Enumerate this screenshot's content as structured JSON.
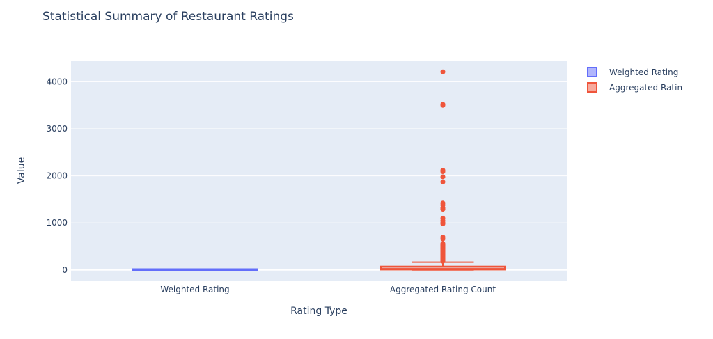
{
  "chart_data": {
    "type": "box",
    "title": "Statistical Summary of Restaurant Ratings",
    "xlabel": "Rating Type",
    "ylabel": "Value",
    "categories": [
      "Weighted Rating",
      "Aggregated Rating Count"
    ],
    "ylim": [
      -240,
      4450
    ],
    "yticks": [
      0,
      1000,
      2000,
      3000,
      4000
    ],
    "grid": true,
    "legend_position": "right",
    "series": [
      {
        "name": "Weighted Rating",
        "legend_label": "Weighted Rating",
        "category": "Weighted Rating",
        "color": "#636efa",
        "box": {
          "lower_fence": 0,
          "q1": 1,
          "median": 3,
          "q3": 4,
          "upper_fence": 5
        },
        "outliers": []
      },
      {
        "name": "Aggregated Rating Count",
        "legend_label": "Aggregated Ratin",
        "category": "Aggregated Rating Count",
        "color": "#ef553b",
        "box": {
          "lower_fence": 0,
          "q1": 5,
          "median": 25,
          "q3": 75,
          "upper_fence": 165
        },
        "outliers": [
          4210,
          3520,
          3500,
          2120,
          2090,
          1980,
          1870,
          1420,
          1380,
          1320,
          1290,
          1100,
          1050,
          1010,
          980,
          700,
          660,
          560,
          540,
          520,
          500,
          480,
          460,
          440,
          420,
          400,
          380,
          360,
          340,
          320,
          300,
          280,
          260,
          240,
          220,
          200,
          185
        ]
      }
    ]
  }
}
